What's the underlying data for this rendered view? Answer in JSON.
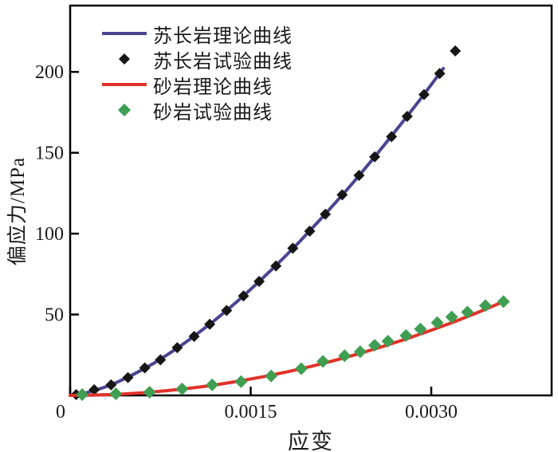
{
  "chart_data": {
    "type": "line",
    "title": "",
    "xlabel": "应变",
    "ylabel": "偏应力/MPa",
    "xlim": [
      0,
      0.004
    ],
    "ylim": [
      0,
      241
    ],
    "grid": false,
    "legend_position": "upper-left",
    "frame_color": "#000000",
    "x_ticks": [
      {
        "value": 0,
        "label": "0"
      },
      {
        "value": 0.0015,
        "label": "0.0015"
      },
      {
        "value": 0.003,
        "label": "0.0030"
      }
    ],
    "y_ticks": [
      {
        "value": 50,
        "label": "50"
      },
      {
        "value": 100,
        "label": "100"
      },
      {
        "value": 150,
        "label": "150"
      },
      {
        "value": 200,
        "label": "200"
      }
    ],
    "series": [
      {
        "name": "苏长岩理论曲线",
        "kind": "line",
        "color": "#4a4590",
        "line_width": 4,
        "x": [
          0,
          0.0001,
          0.0002,
          0.0003,
          0.0004,
          0.0005,
          0.0006,
          0.0007,
          0.0008,
          0.0009,
          0.001,
          0.0011,
          0.0012,
          0.0013,
          0.0014,
          0.0015,
          0.0016,
          0.0017,
          0.0018,
          0.0019,
          0.002,
          0.0021,
          0.0022,
          0.0023,
          0.0024,
          0.0025,
          0.0026,
          0.0027,
          0.0028,
          0.0029,
          0.003,
          0.0031
        ],
        "y": [
          0,
          1,
          2.9,
          5.4,
          8.5,
          12,
          15.9,
          20.1,
          24.8,
          29.7,
          35,
          40.6,
          46.4,
          52.5,
          58.9,
          65.6,
          72.5,
          79.6,
          87,
          94.6,
          102.5,
          110.5,
          118.8,
          127.2,
          135.9,
          144.8,
          153.9,
          163.2,
          172.6,
          182.2,
          192.1,
          202.1
        ]
      },
      {
        "name": "苏长岩试验曲线",
        "kind": "scatter",
        "marker": "diamond",
        "color": "#161616",
        "marker_size": 14,
        "x": [
          5e-05,
          0.0002,
          0.00034,
          0.00048,
          0.00062,
          0.00075,
          0.00089,
          0.00103,
          0.00116,
          0.0013,
          0.00144,
          0.00157,
          0.00171,
          0.00185,
          0.00199,
          0.00212,
          0.00226,
          0.0024,
          0.00253,
          0.00267,
          0.0028,
          0.00294,
          0.00307,
          0.0032
        ],
        "y": [
          0.5,
          3.5,
          6.5,
          11,
          17,
          22,
          29.5,
          36.5,
          44,
          52.5,
          61.5,
          70.5,
          80,
          91,
          101.5,
          112,
          124,
          136,
          147.5,
          160,
          172.5,
          186,
          199,
          213
        ]
      },
      {
        "name": "砂岩理论曲线",
        "kind": "line",
        "color": "#e13228",
        "line_width": 4,
        "x": [
          0,
          0.0002,
          0.0004,
          0.0006,
          0.0008,
          0.001,
          0.0012,
          0.0014,
          0.0016,
          0.0018,
          0.002,
          0.0022,
          0.0024,
          0.0026,
          0.0028,
          0.003,
          0.0032,
          0.0034,
          0.0036
        ],
        "y": [
          0,
          0.2,
          0.7,
          1.6,
          2.9,
          4.5,
          6.4,
          8.8,
          11.5,
          14.5,
          17.9,
          21.7,
          25.8,
          30.3,
          35.1,
          40.3,
          45.8,
          51.7,
          58
        ]
      },
      {
        "name": "砂岩试验曲线",
        "kind": "scatter",
        "marker": "diamond",
        "color": "#3f9e52",
        "marker_size": 16,
        "x": [
          0.0001,
          0.00038,
          0.00066,
          0.00093,
          0.00118,
          0.00142,
          0.00167,
          0.00192,
          0.0021,
          0.00228,
          0.00241,
          0.00253,
          0.00264,
          0.00279,
          0.00291,
          0.00305,
          0.00317,
          0.0033,
          0.00345,
          0.0036
        ],
        "y": [
          0.5,
          1,
          2,
          4,
          6.5,
          8.5,
          12,
          16.5,
          21,
          24.5,
          27,
          31,
          33.5,
          37,
          41,
          45,
          48.5,
          51.5,
          55.5,
          58
        ]
      }
    ]
  }
}
